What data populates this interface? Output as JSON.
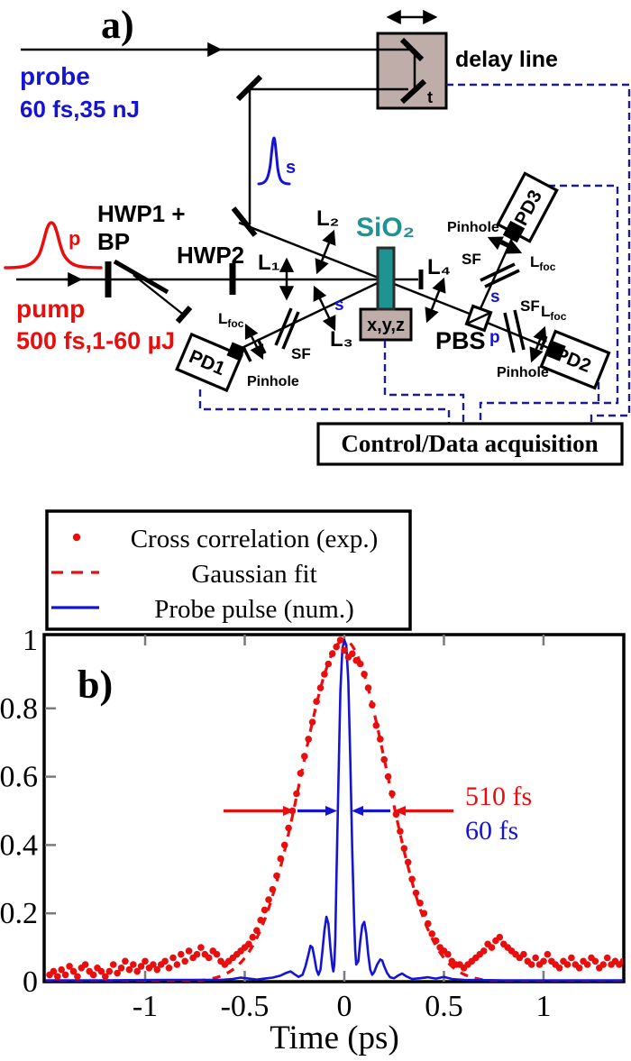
{
  "colors": {
    "red": "#e90d0d",
    "blue": "#1414d2",
    "teal": "#1f9292",
    "navy": "#1c1c8e",
    "box_fill": "#bfada9",
    "tick_gray": "#7a7a7a"
  },
  "diagram": {
    "panel_label": "a)",
    "probe_label": "probe",
    "probe_specs": "60 fs,35 nJ",
    "pump_label": "pump",
    "pump_specs": "500 fs,1-60 µJ",
    "pump_pulse_tag": "p",
    "probe_pulse_tag": "s",
    "delay_line_label": "delay line",
    "delay_time_tag": "t",
    "hwp1_line1": "HWP1 +",
    "hwp1_line2": "BP",
    "hwp2_label": "HWP2",
    "lens1": "L₁",
    "lens2": "L₂",
    "lens3": "L₃",
    "lens4": "L₄",
    "sample": "SiO₂",
    "stage": "x,y,z",
    "pbs": "PBS",
    "pd1": "PD1",
    "pd2": "PD2",
    "pd3": "PD3",
    "pinhole": "Pinhole",
    "sf": "SF",
    "lfoc_main": "L",
    "lfoc_sub": "foc",
    "s_pol": "s",
    "p_pol": "p",
    "control_box": "Control/Data acquisition"
  },
  "chart_data": {
    "type": "scatter",
    "panel_label": "b)",
    "title": "",
    "xlabel": "Time (ps)",
    "ylabel": "",
    "xlim": [
      -1.507,
      1.403
    ],
    "ylim": [
      0,
      1.02
    ],
    "grid": false,
    "legend_position": "top-left-outside",
    "xticks": [
      -1,
      -0.5,
      0,
      0.5,
      1
    ],
    "xtick_labels": [
      "-1",
      "-0.5",
      "0",
      "0.5",
      "1"
    ],
    "yticks": [
      0,
      0.2,
      0.4,
      0.6,
      0.8,
      1
    ],
    "ytick_labels": [
      "0",
      "0.2",
      "0.4",
      "0.6",
      "0.8",
      "1"
    ],
    "legend": [
      {
        "label": "Cross correlation (exp.)",
        "marker": "dot",
        "color": "red"
      },
      {
        "label": "Gaussian fit",
        "marker": "dashed",
        "color": "red"
      },
      {
        "label": "Probe pulse (num.)",
        "marker": "solid",
        "color": "blue"
      }
    ],
    "annotations": [
      {
        "text": "510 fs",
        "color": "red",
        "meaning": "FWHM of cross correlation at half maximum"
      },
      {
        "text": "60 fs",
        "color": "blue",
        "meaning": "FWHM of probe pulse at half maximum"
      }
    ],
    "gaussian_fit": {
      "center_ps": 0.0,
      "fwhm_ps": 0.51,
      "amplitude": 1.0
    },
    "series": [
      {
        "name": "Cross correlation (exp.)",
        "style": "scatter-dots",
        "points": [
          [
            -1.48,
            0.02
          ],
          [
            -1.46,
            0.03
          ],
          [
            -1.44,
            0.015
          ],
          [
            -1.42,
            0.035
          ],
          [
            -1.4,
            0.02
          ],
          [
            -1.38,
            0.045
          ],
          [
            -1.36,
            0.03
          ],
          [
            -1.34,
            0.015
          ],
          [
            -1.32,
            0.04
          ],
          [
            -1.3,
            0.05
          ],
          [
            -1.28,
            0.03
          ],
          [
            -1.26,
            0.02
          ],
          [
            -1.24,
            0.04
          ],
          [
            -1.22,
            0.03
          ],
          [
            -1.2,
            0.015
          ],
          [
            -1.18,
            0.03
          ],
          [
            -1.16,
            0.05
          ],
          [
            -1.14,
            0.025
          ],
          [
            -1.12,
            0.04
          ],
          [
            -1.1,
            0.06
          ],
          [
            -1.08,
            0.035
          ],
          [
            -1.06,
            0.05
          ],
          [
            -1.04,
            0.03
          ],
          [
            -1.02,
            0.045
          ],
          [
            -1.0,
            0.06
          ],
          [
            -0.98,
            0.04
          ],
          [
            -0.96,
            0.05
          ],
          [
            -0.94,
            0.035
          ],
          [
            -0.92,
            0.05
          ],
          [
            -0.9,
            0.06
          ],
          [
            -0.88,
            0.04
          ],
          [
            -0.86,
            0.07
          ],
          [
            -0.84,
            0.05
          ],
          [
            -0.82,
            0.08
          ],
          [
            -0.8,
            0.06
          ],
          [
            -0.78,
            0.09
          ],
          [
            -0.76,
            0.07
          ],
          [
            -0.74,
            0.08
          ],
          [
            -0.72,
            0.1
          ],
          [
            -0.7,
            0.08
          ],
          [
            -0.68,
            0.07
          ],
          [
            -0.66,
            0.09
          ],
          [
            -0.64,
            0.08
          ],
          [
            -0.62,
            0.06
          ],
          [
            -0.6,
            0.05
          ],
          [
            -0.58,
            0.06
          ],
          [
            -0.56,
            0.07
          ],
          [
            -0.54,
            0.08
          ],
          [
            -0.52,
            0.09
          ],
          [
            -0.5,
            0.1
          ],
          [
            -0.48,
            0.11
          ],
          [
            -0.46,
            0.13
          ],
          [
            -0.44,
            0.15
          ],
          [
            -0.42,
            0.18
          ],
          [
            -0.4,
            0.21
          ],
          [
            -0.38,
            0.24
          ],
          [
            -0.36,
            0.27
          ],
          [
            -0.34,
            0.31
          ],
          [
            -0.32,
            0.36
          ],
          [
            -0.3,
            0.4
          ],
          [
            -0.28,
            0.45
          ],
          [
            -0.26,
            0.5
          ],
          [
            -0.24,
            0.55
          ],
          [
            -0.22,
            0.61
          ],
          [
            -0.2,
            0.66
          ],
          [
            -0.18,
            0.71
          ],
          [
            -0.16,
            0.76
          ],
          [
            -0.14,
            0.82
          ],
          [
            -0.12,
            0.86
          ],
          [
            -0.1,
            0.9
          ],
          [
            -0.08,
            0.93
          ],
          [
            -0.06,
            0.96
          ],
          [
            -0.04,
            0.98
          ],
          [
            -0.02,
            1.0
          ],
          [
            0.0,
            0.97
          ],
          [
            0.02,
            0.95
          ],
          [
            0.04,
            0.96
          ],
          [
            0.06,
            0.94
          ],
          [
            0.08,
            0.93
          ],
          [
            0.1,
            0.9
          ],
          [
            0.12,
            0.86
          ],
          [
            0.14,
            0.81
          ],
          [
            0.16,
            0.75
          ],
          [
            0.18,
            0.71
          ],
          [
            0.2,
            0.65
          ],
          [
            0.22,
            0.6
          ],
          [
            0.24,
            0.55
          ],
          [
            0.26,
            0.49
          ],
          [
            0.28,
            0.44
          ],
          [
            0.3,
            0.39
          ],
          [
            0.32,
            0.35
          ],
          [
            0.34,
            0.3
          ],
          [
            0.36,
            0.26
          ],
          [
            0.38,
            0.23
          ],
          [
            0.4,
            0.2
          ],
          [
            0.42,
            0.17
          ],
          [
            0.44,
            0.14
          ],
          [
            0.46,
            0.12
          ],
          [
            0.48,
            0.1
          ],
          [
            0.5,
            0.09
          ],
          [
            0.52,
            0.08
          ],
          [
            0.54,
            0.06
          ],
          [
            0.56,
            0.05
          ],
          [
            0.58,
            0.05
          ],
          [
            0.6,
            0.04
          ],
          [
            0.62,
            0.05
          ],
          [
            0.64,
            0.06
          ],
          [
            0.66,
            0.07
          ],
          [
            0.68,
            0.08
          ],
          [
            0.7,
            0.09
          ],
          [
            0.72,
            0.11
          ],
          [
            0.74,
            0.1
          ],
          [
            0.76,
            0.12
          ],
          [
            0.78,
            0.13
          ],
          [
            0.8,
            0.11
          ],
          [
            0.82,
            0.1
          ],
          [
            0.84,
            0.09
          ],
          [
            0.86,
            0.08
          ],
          [
            0.88,
            0.07
          ],
          [
            0.9,
            0.08
          ],
          [
            0.92,
            0.06
          ],
          [
            0.94,
            0.05
          ],
          [
            0.96,
            0.07
          ],
          [
            0.98,
            0.05
          ],
          [
            1.0,
            0.06
          ],
          [
            1.02,
            0.08
          ],
          [
            1.04,
            0.06
          ],
          [
            1.06,
            0.05
          ],
          [
            1.08,
            0.04
          ],
          [
            1.1,
            0.06
          ],
          [
            1.12,
            0.05
          ],
          [
            1.14,
            0.07
          ],
          [
            1.16,
            0.05
          ],
          [
            1.18,
            0.04
          ],
          [
            1.2,
            0.06
          ],
          [
            1.22,
            0.05
          ],
          [
            1.24,
            0.07
          ],
          [
            1.26,
            0.06
          ],
          [
            1.28,
            0.04
          ],
          [
            1.3,
            0.05
          ],
          [
            1.32,
            0.07
          ],
          [
            1.34,
            0.05
          ],
          [
            1.36,
            0.06
          ],
          [
            1.38,
            0.05
          ],
          [
            1.4,
            0.06
          ]
        ]
      },
      {
        "name": "Probe pulse (num.)",
        "style": "solid-line",
        "points": [
          [
            -1.5,
            0.004
          ],
          [
            -1.2,
            0.004
          ],
          [
            -0.9,
            0.005
          ],
          [
            -0.7,
            0.005
          ],
          [
            -0.62,
            0.005
          ],
          [
            -0.56,
            0.008
          ],
          [
            -0.52,
            0.012
          ],
          [
            -0.48,
            0.009
          ],
          [
            -0.44,
            0.006
          ],
          [
            -0.4,
            0.009
          ],
          [
            -0.36,
            0.012
          ],
          [
            -0.32,
            0.018
          ],
          [
            -0.29,
            0.026
          ],
          [
            -0.27,
            0.03
          ],
          [
            -0.25,
            0.022
          ],
          [
            -0.23,
            0.014
          ],
          [
            -0.21,
            0.02
          ],
          [
            -0.195,
            0.045
          ],
          [
            -0.18,
            0.08
          ],
          [
            -0.17,
            0.105
          ],
          [
            -0.16,
            0.1
          ],
          [
            -0.15,
            0.07
          ],
          [
            -0.14,
            0.035
          ],
          [
            -0.13,
            0.02
          ],
          [
            -0.12,
            0.035
          ],
          [
            -0.11,
            0.09
          ],
          [
            -0.1,
            0.15
          ],
          [
            -0.09,
            0.19
          ],
          [
            -0.08,
            0.17
          ],
          [
            -0.07,
            0.1
          ],
          [
            -0.06,
            0.045
          ],
          [
            -0.055,
            0.03
          ],
          [
            -0.05,
            0.05
          ],
          [
            -0.045,
            0.13
          ],
          [
            -0.04,
            0.3
          ],
          [
            -0.03,
            0.58
          ],
          [
            -0.02,
            0.85
          ],
          [
            -0.01,
            0.975
          ],
          [
            0.0,
            1.0
          ],
          [
            0.01,
            0.985
          ],
          [
            0.02,
            0.88
          ],
          [
            0.03,
            0.65
          ],
          [
            0.04,
            0.38
          ],
          [
            0.05,
            0.17
          ],
          [
            0.055,
            0.09
          ],
          [
            0.06,
            0.05
          ],
          [
            0.07,
            0.06
          ],
          [
            0.08,
            0.12
          ],
          [
            0.09,
            0.165
          ],
          [
            0.1,
            0.175
          ],
          [
            0.11,
            0.14
          ],
          [
            0.12,
            0.08
          ],
          [
            0.13,
            0.035
          ],
          [
            0.14,
            0.02
          ],
          [
            0.15,
            0.028
          ],
          [
            0.165,
            0.05
          ],
          [
            0.18,
            0.065
          ],
          [
            0.19,
            0.062
          ],
          [
            0.2,
            0.045
          ],
          [
            0.215,
            0.025
          ],
          [
            0.23,
            0.013
          ],
          [
            0.25,
            0.01
          ],
          [
            0.27,
            0.018
          ],
          [
            0.29,
            0.024
          ],
          [
            0.31,
            0.016
          ],
          [
            0.34,
            0.008
          ],
          [
            0.38,
            0.01
          ],
          [
            0.42,
            0.013
          ],
          [
            0.46,
            0.009
          ],
          [
            0.5,
            0.014
          ],
          [
            0.54,
            0.008
          ],
          [
            0.6,
            0.005
          ],
          [
            0.8,
            0.004
          ],
          [
            1.1,
            0.004
          ],
          [
            1.4,
            0.004
          ]
        ]
      }
    ]
  }
}
